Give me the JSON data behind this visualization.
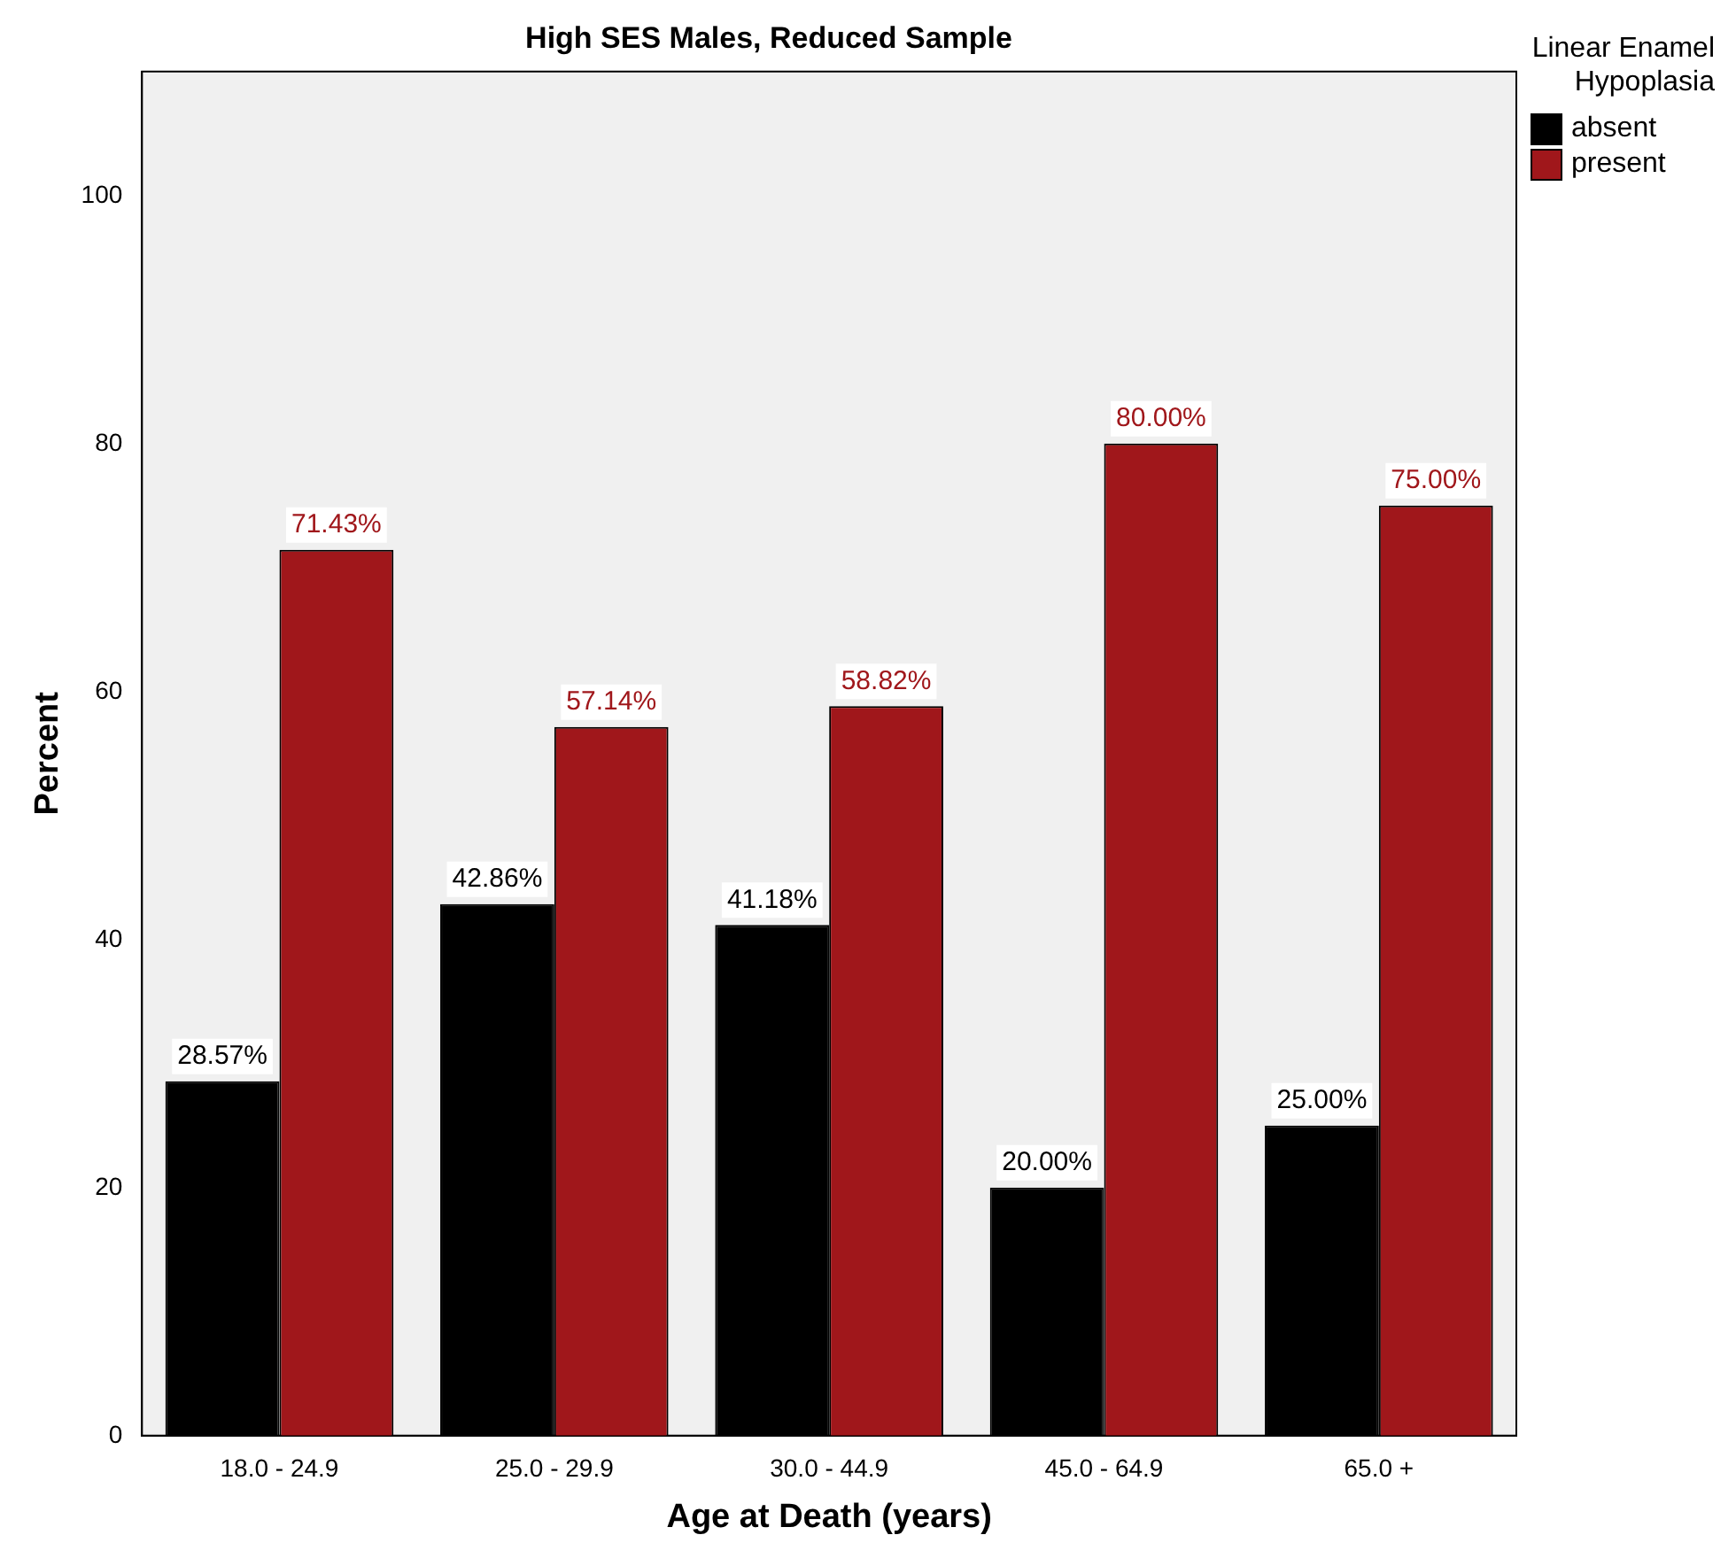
{
  "chart_data": {
    "type": "bar",
    "title": "High SES Males, Reduced Sample",
    "xlabel": "Age at Death (years)",
    "ylabel": "Percent",
    "legend_title": "Linear Enamel Hypoplasia",
    "legend": "top right",
    "grid": false,
    "categories": [
      "18.0 - 24.9",
      "25.0 - 29.9",
      "30.0 - 44.9",
      "45.0 - 64.9",
      "65.0 +"
    ],
    "series": [
      {
        "name": "absent",
        "color": "#000000",
        "values": [
          28.57,
          42.86,
          41.18,
          20.0,
          25.0
        ],
        "value_labels": [
          "28.57%",
          "42.86%",
          "41.18%",
          "20.00%",
          "25.00%"
        ]
      },
      {
        "name": "present",
        "color": "#a0171b",
        "values": [
          71.43,
          57.14,
          58.82,
          80.0,
          75.0
        ],
        "value_labels": [
          "71.43%",
          "57.14%",
          "58.82%",
          "80.00%",
          "75.00%"
        ]
      }
    ],
    "ylim": [
      0,
      110
    ],
    "yticks": [
      0,
      20,
      40,
      60,
      80,
      100
    ]
  }
}
